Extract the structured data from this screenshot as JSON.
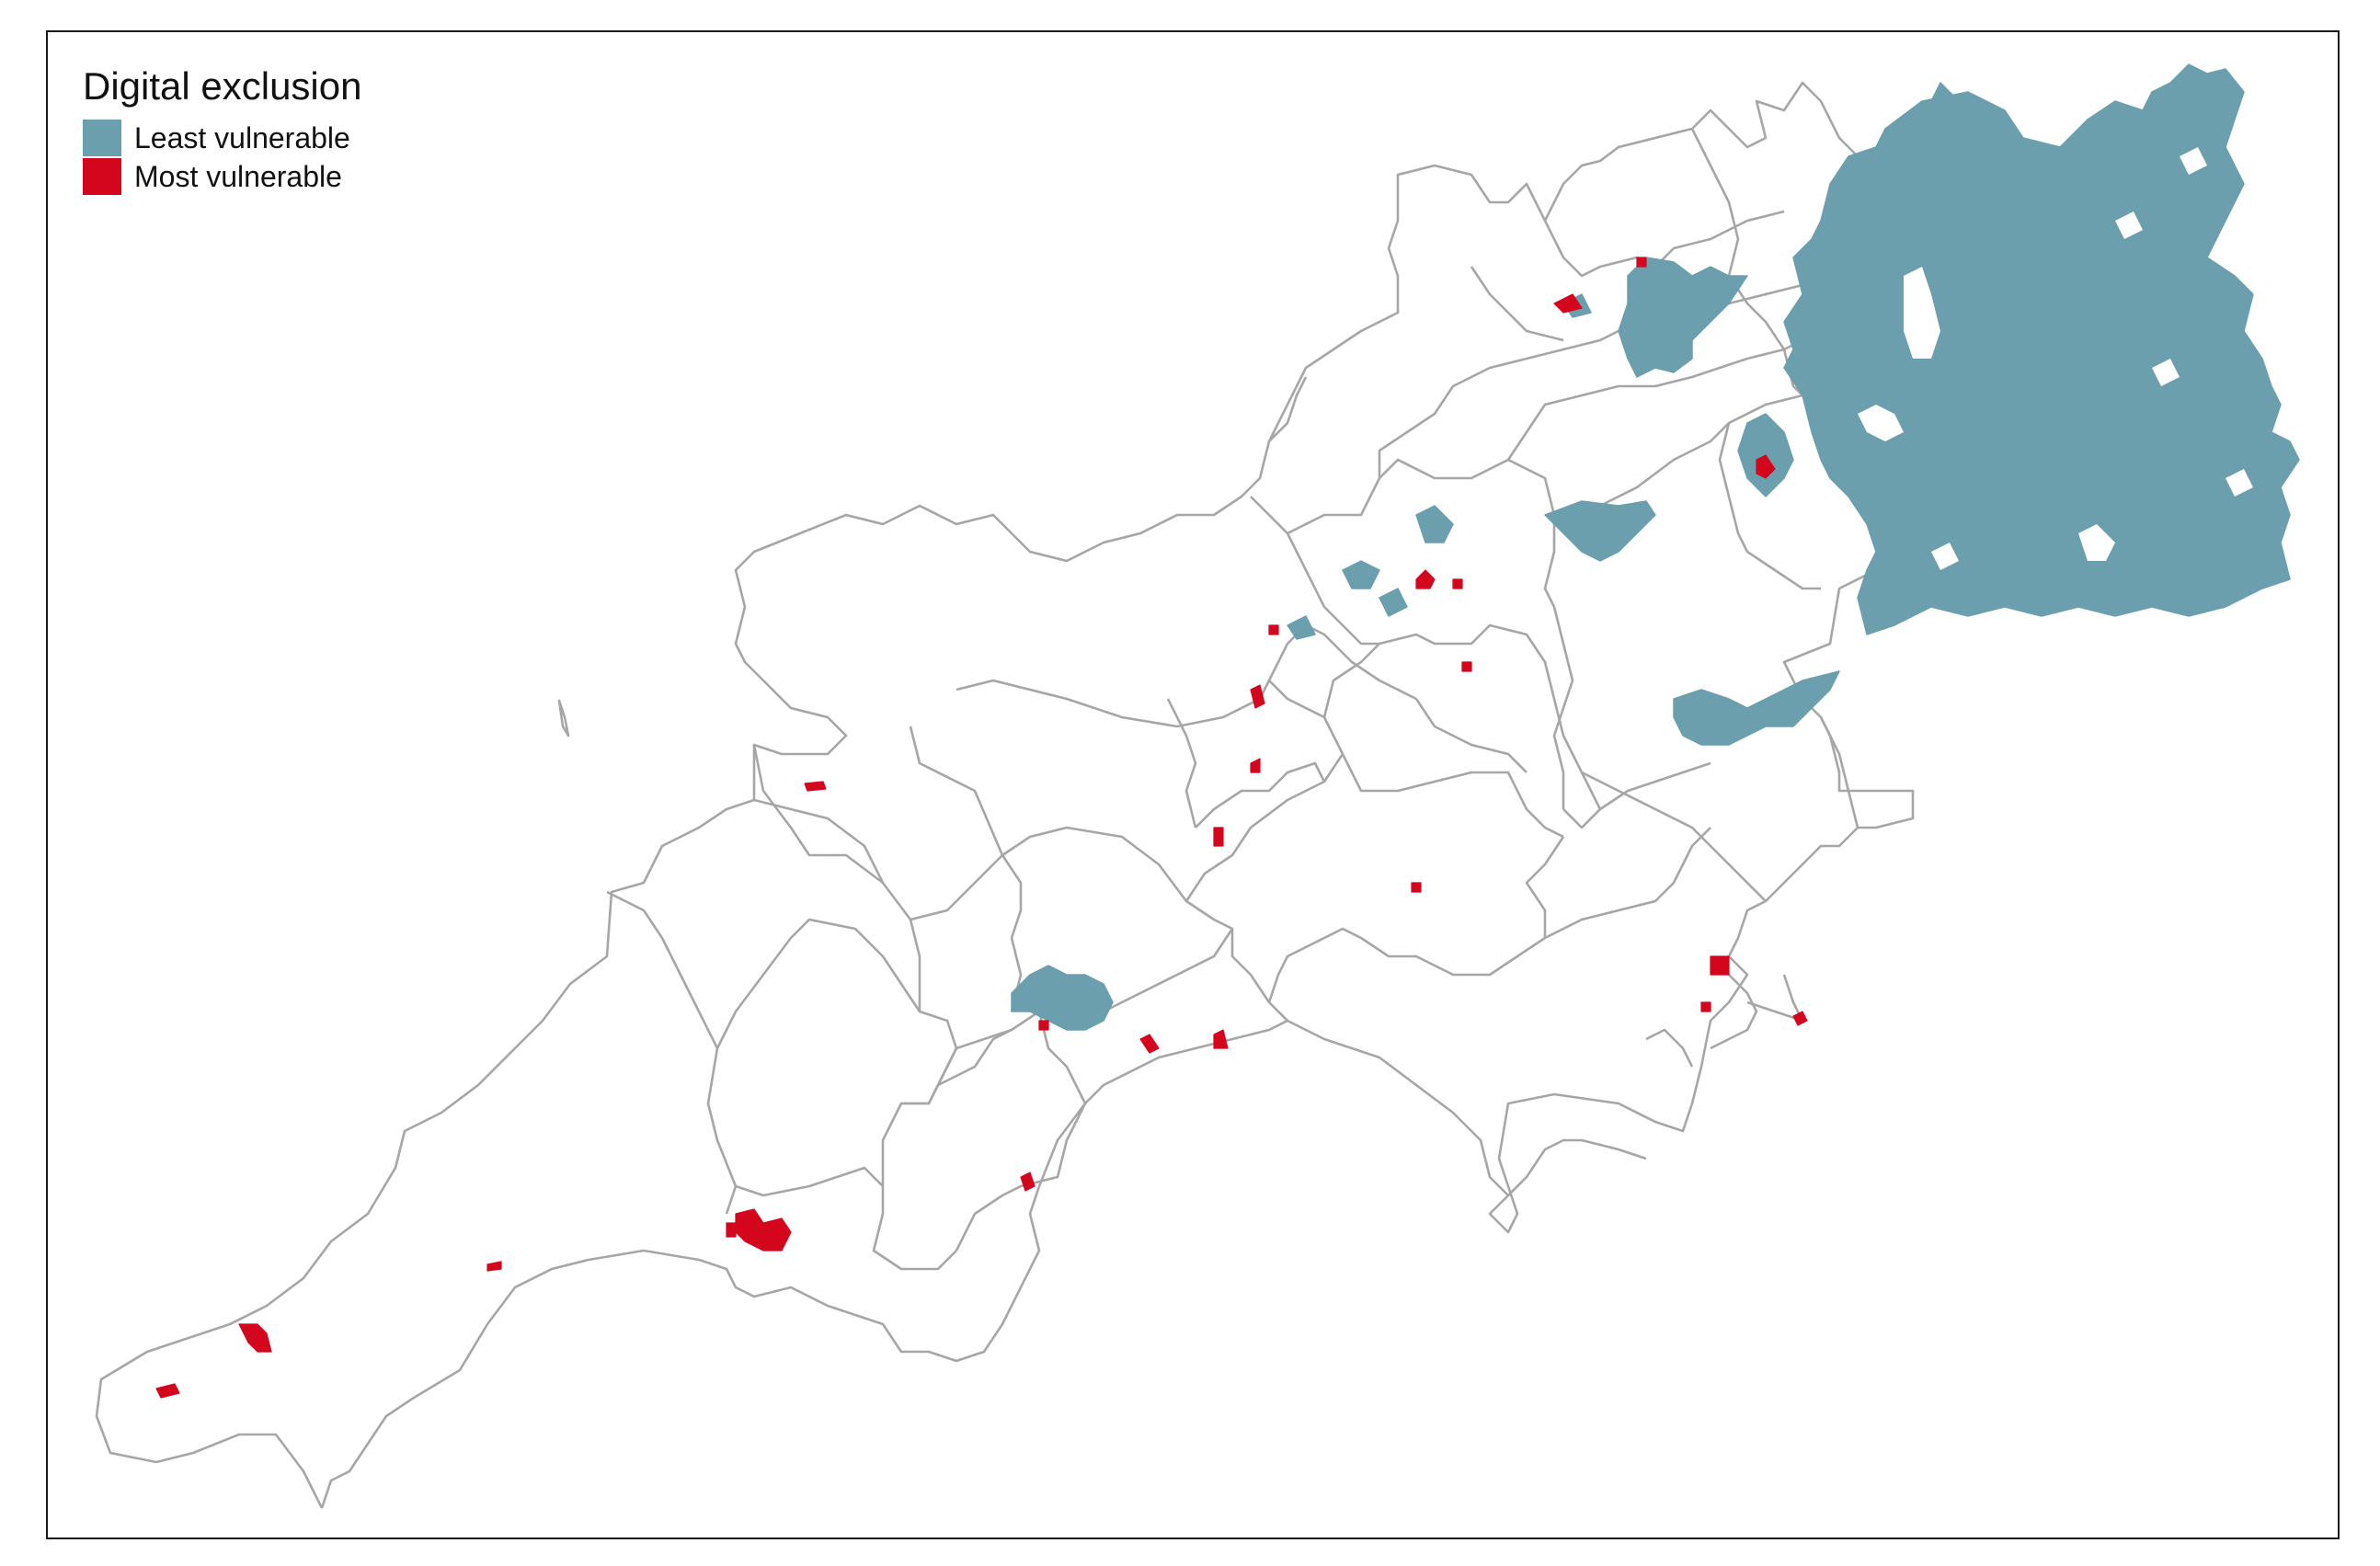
{
  "legend": {
    "title": "Digital exclusion",
    "items": [
      {
        "label": "Least vulnerable",
        "color": "#6b9fae"
      },
      {
        "label": "Most vulnerable",
        "color": "#d3061e"
      }
    ]
  },
  "colors": {
    "least_vulnerable": "#6b9fae",
    "most_vulnerable": "#d3061e",
    "boundary": "#a6a6a6",
    "frame": "#1a1a1a"
  }
}
